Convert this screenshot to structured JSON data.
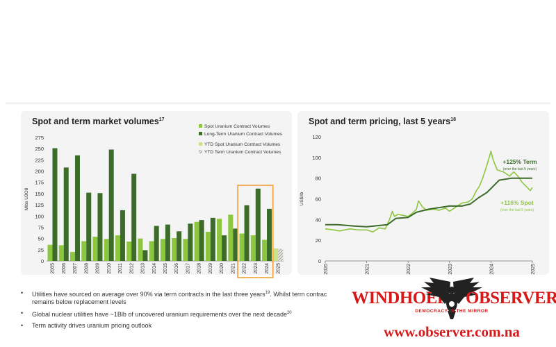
{
  "left_chart": {
    "title": "Spot and term market volumes",
    "title_ref": "17",
    "chart_data": {
      "type": "bar",
      "title": "Spot and term market volumes",
      "ylabel": "Mlbs U3O8",
      "ylim": [
        0,
        275
      ],
      "yticks": [
        0,
        25,
        50,
        75,
        100,
        125,
        150,
        175,
        200,
        225,
        250,
        275
      ],
      "categories": [
        "2005",
        "2006",
        "2007",
        "2008",
        "2009",
        "2010",
        "2011",
        "2012",
        "2013",
        "2014",
        "2015",
        "2016",
        "2017",
        "2018",
        "2019",
        "2020",
        "2021",
        "2022",
        "2023",
        "2024",
        "2025"
      ],
      "series": [
        {
          "name": "Spot Uranium Contract Volumes",
          "color": "#8dc63f",
          "values": [
            36,
            35,
            20,
            44,
            54,
            49,
            57,
            43,
            50,
            44,
            49,
            51,
            49,
            87,
            65,
            94,
            103,
            61,
            57,
            47,
            null
          ]
        },
        {
          "name": "Long-Term Uranium Contract Volumes",
          "color": "#3c6b2a",
          "values": [
            251,
            208,
            235,
            152,
            151,
            248,
            113,
            194,
            24,
            78,
            81,
            66,
            83,
            91,
            96,
            57,
            72,
            124,
            161,
            116,
            null
          ]
        },
        {
          "name": "YTD Spot Uranium Contract Volumes",
          "color": "#c8e38c",
          "values": [
            null,
            null,
            null,
            null,
            null,
            null,
            null,
            null,
            null,
            null,
            null,
            null,
            null,
            null,
            null,
            null,
            null,
            null,
            null,
            null,
            28
          ]
        },
        {
          "name": "YTD Term Uranium Contract Volumes",
          "color": "#9aa68f",
          "values": [
            null,
            null,
            null,
            null,
            null,
            null,
            null,
            null,
            null,
            null,
            null,
            null,
            null,
            null,
            null,
            null,
            null,
            null,
            null,
            null,
            27
          ]
        }
      ],
      "highlight": {
        "from": "2022",
        "to": "2024",
        "color": "#f29f38"
      },
      "grid": false,
      "legend": "top-right"
    }
  },
  "right_chart": {
    "title": "Spot and term pricing, last 5 years",
    "title_ref": "18",
    "chart_data": {
      "type": "line",
      "title": "Spot and term pricing, last 5 years",
      "ylabel": "US$/lb",
      "ylim": [
        0,
        120
      ],
      "yticks": [
        0,
        20,
        40,
        60,
        80,
        100,
        120
      ],
      "xlim": [
        2020,
        2025
      ],
      "xticks": [
        "2020",
        "2021",
        "2022",
        "2023",
        "2024",
        "2025"
      ],
      "series": [
        {
          "name": "Spot",
          "color": "#8dc63f",
          "x": [
            2020.0,
            2020.2,
            2020.35,
            2020.6,
            2020.8,
            2021.0,
            2021.15,
            2021.3,
            2021.45,
            2021.55,
            2021.62,
            2021.67,
            2021.75,
            2021.9,
            2022.0,
            2022.1,
            2022.2,
            2022.25,
            2022.35,
            2022.45,
            2022.6,
            2022.75,
            2022.9,
            2023.0,
            2023.15,
            2023.3,
            2023.45,
            2023.55,
            2023.65,
            2023.72,
            2023.8,
            2023.9,
            2024.0,
            2024.05,
            2024.15,
            2024.3,
            2024.45,
            2024.55,
            2024.65,
            2024.75,
            2024.85,
            2024.95,
            2025.0
          ],
          "y": [
            31,
            30,
            29,
            31,
            30,
            30,
            28,
            32,
            31,
            40,
            48,
            43,
            45,
            44,
            43,
            46,
            50,
            58,
            52,
            49,
            50,
            49,
            51,
            48,
            52,
            56,
            57,
            60,
            68,
            72,
            80,
            92,
            106,
            98,
            88,
            86,
            82,
            86,
            82,
            76,
            72,
            68,
            71
          ]
        },
        {
          "name": "Term",
          "color": "#3c6b2a",
          "x": [
            2020.0,
            2020.3,
            2020.6,
            2021.0,
            2021.5,
            2021.7,
            2022.0,
            2022.2,
            2022.5,
            2023.0,
            2023.3,
            2023.5,
            2023.7,
            2023.9,
            2024.0,
            2024.2,
            2024.5,
            2024.8,
            2025.0
          ],
          "y": [
            35,
            35,
            34,
            33,
            35,
            41,
            42,
            47,
            50,
            53,
            53,
            55,
            61,
            66,
            70,
            78,
            80,
            80,
            80
          ]
        }
      ],
      "annotations": [
        {
          "text": "+125% Term",
          "subtext": "(over the last 5 years)",
          "color": "#3c6b2a"
        },
        {
          "text": "+116% Spot",
          "subtext": "(over the last 5 years)",
          "color": "#8dc63f"
        }
      ],
      "grid": false
    }
  },
  "bullets": [
    {
      "text": "Utilities have sourced on average over 90% via term contracts in the last three years",
      "ref": "19",
      "tail": ". Whilst term contrac"
    },
    {
      "text": "remains below replacement levels",
      "ref": "",
      "tail": "",
      "continuation": true
    },
    {
      "text": "Global nuclear utilities have ~1Blb of uncovered uranium requirements over the next decade",
      "ref": "20",
      "tail": ""
    },
    {
      "text": "Term activity drives uranium pricing outlook",
      "ref": "",
      "tail": ""
    }
  ],
  "watermark": {
    "word_left": "WINDHOEK",
    "word_right": "OBSERVER",
    "tagline": "DEMOCRACY IN THE MIRROR",
    "url": "www.observer.com.na",
    "color": "#d41a1a"
  }
}
